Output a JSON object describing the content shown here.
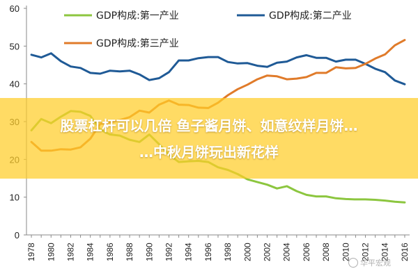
{
  "chart_data": {
    "type": "line",
    "x": [
      1978,
      1979,
      1980,
      1981,
      1982,
      1983,
      1984,
      1985,
      1986,
      1987,
      1988,
      1989,
      1990,
      1991,
      1992,
      1993,
      1994,
      1995,
      1996,
      1997,
      1998,
      1999,
      2000,
      2001,
      2002,
      2003,
      2004,
      2005,
      2006,
      2007,
      2008,
      2009,
      2010,
      2011,
      2012,
      2013,
      2014,
      2015,
      2016
    ],
    "xticks": [
      "1978",
      "1980",
      "1982",
      "1984",
      "1986",
      "1988",
      "1990",
      "1992",
      "1994",
      "1996",
      "1998",
      "2000",
      "2002",
      "2004",
      "2006",
      "2008",
      "2010",
      "2012",
      "2014",
      "2016"
    ],
    "ylim": [
      0,
      60
    ],
    "yticks": [
      "0",
      "10",
      "20",
      "30",
      "40",
      "50",
      "60"
    ],
    "series": [
      {
        "name": "GDP构成:第一产业",
        "color": "#8cc63f",
        "values": [
          27.7,
          30.7,
          29.6,
          31.3,
          32.8,
          32.6,
          31.5,
          27.9,
          26.6,
          26.3,
          25.2,
          24.6,
          26.6,
          24.0,
          21.3,
          19.3,
          19.5,
          19.6,
          19.3,
          17.9,
          17.2,
          16.1,
          14.7,
          14.0,
          13.3,
          12.3,
          12.9,
          11.6,
          10.6,
          10.2,
          10.2,
          9.7,
          9.5,
          9.4,
          9.4,
          9.3,
          9.1,
          8.8,
          8.6
        ]
      },
      {
        "name": "GDP构成:第二产业",
        "color": "#1f5a96",
        "values": [
          47.7,
          47.0,
          48.1,
          46.0,
          44.6,
          44.2,
          42.9,
          42.7,
          43.5,
          43.3,
          43.5,
          42.5,
          41.0,
          41.5,
          43.1,
          46.2,
          46.2,
          46.8,
          47.1,
          47.1,
          45.8,
          45.4,
          45.5,
          44.8,
          44.5,
          45.6,
          45.9,
          47.0,
          47.6,
          46.9,
          46.9,
          45.9,
          46.4,
          46.4,
          45.3,
          44.0,
          43.1,
          40.9,
          39.9
        ]
      },
      {
        "name": "GDP构成:第三产业",
        "color": "#e07b2a",
        "values": [
          24.6,
          22.3,
          22.3,
          22.7,
          22.6,
          23.2,
          25.5,
          29.4,
          29.8,
          30.4,
          31.2,
          32.9,
          32.4,
          34.5,
          35.6,
          34.5,
          34.4,
          33.7,
          33.6,
          35.0,
          37.0,
          38.6,
          39.8,
          41.2,
          42.2,
          42.0,
          41.2,
          41.4,
          41.8,
          42.9,
          42.9,
          44.4,
          44.1,
          44.2,
          45.3,
          46.7,
          47.8,
          50.2,
          51.6
        ]
      }
    ]
  },
  "overlay": {
    "title_line1": "股票杠杆可以几倍 鱼子酱月饼、如意纹样月饼…",
    "title_line2": "…中秋月饼玩出新花样",
    "band_color": "#ffcd28"
  },
  "watermark": {
    "text": "华平宏观",
    "icon": "wechat-icon"
  }
}
